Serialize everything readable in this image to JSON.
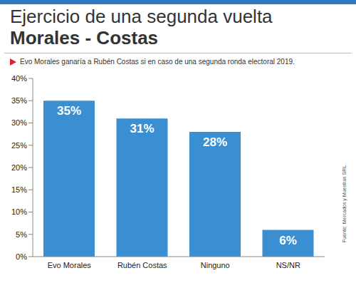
{
  "chart_data": {
    "type": "bar",
    "title": "Ejercicio de una segunda vuelta Morales - Costas",
    "subtitle": "Evo Morales ganaría a Rubén Costas si en caso de una segunda ronda electoral 2019.",
    "source": "Fuente: Mercados y Muestras SRL.",
    "categories": [
      "Evo Morales",
      "Rubén Costas",
      "Ninguno",
      "NS/NR"
    ],
    "values": [
      35,
      31,
      28,
      6
    ],
    "value_labels": [
      "35%",
      "31%",
      "28%",
      "6%"
    ],
    "color": "#3a8fd2",
    "ylim": [
      0,
      40
    ],
    "yticks": [
      {
        "value": 0,
        "label": "0%"
      },
      {
        "value": 5,
        "label": "5%"
      },
      {
        "value": 10,
        "label": "10%"
      },
      {
        "value": 15,
        "label": "15%"
      },
      {
        "value": 20,
        "label": "20%"
      },
      {
        "value": 25,
        "label": "25%"
      },
      {
        "value": 30,
        "label": "30%"
      },
      {
        "value": 35,
        "label": "35%"
      },
      {
        "value": 40,
        "label": "40%"
      }
    ],
    "grid": false,
    "data_labels": true
  }
}
